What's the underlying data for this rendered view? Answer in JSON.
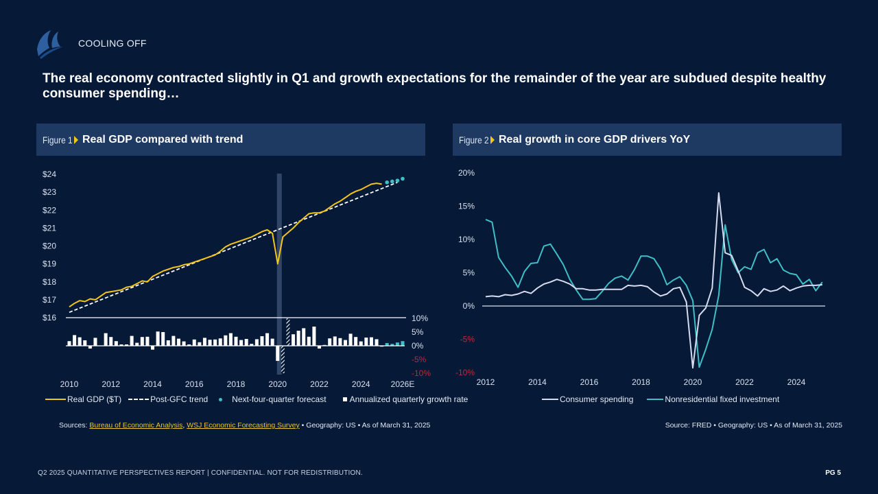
{
  "header": {
    "kicker": "COOLING OFF",
    "headline": "The real economy contracted slightly in Q1 and growth expectations for the remainder of the year are subdued despite healthy consumer spending…"
  },
  "figure1": {
    "number": "Figure 1",
    "title": "Real GDP compared with trend",
    "legend": {
      "gdp": "Real GDP ($T)",
      "trend": "Post-GFC trend",
      "forecast": "Next-four-quarter forecast",
      "growth": "Annualized quarterly growth rate"
    },
    "source": {
      "prefix": "Sources: ",
      "link1": "Bureau of Economic Analysis",
      "sep": ", ",
      "link2": "WSJ Economic Forecasting Survey",
      "suffix": " • Geography: US • As of March 31, 2025"
    }
  },
  "figure2": {
    "number": "Figure 2",
    "title": "Real growth in core GDP drivers YoY",
    "legend": {
      "consumer": "Consumer spending",
      "nonres": "Nonresidential fixed investment"
    },
    "source": "Source: FRED • Geography: US • As of March 31, 2025"
  },
  "footer": {
    "text": "Q2 2025 QUANTITATIVE PERSPECTIVES REPORT | CONFIDENTIAL. NOT FOR REDISTRIBUTION.",
    "page": "PG 5"
  },
  "colors": {
    "background": "#061a38",
    "panel_header": "#1e3a62",
    "gdp_line": "#f5c518",
    "forecast": "#3fbfc8",
    "consumer": "#d8dcef",
    "nonres": "#3fbfc8",
    "negative": "#c0263a",
    "recession_band": "#3a4f6e"
  },
  "chart_data": [
    {
      "type": "line",
      "title": "Real GDP compared with trend",
      "x_ticks": [
        "2010",
        "2012",
        "2014",
        "2016",
        "2018",
        "2020",
        "2022",
        "2024",
        "2026E"
      ],
      "x_range": [
        2010,
        2026
      ],
      "y_ticks": [
        "$16",
        "$17",
        "$18",
        "$19",
        "$20",
        "$21",
        "$22",
        "$23",
        "$24"
      ],
      "ylim": [
        16,
        24
      ],
      "ylabel": "Real GDP ($T)",
      "recession_band": [
        2020.0,
        2020.25
      ],
      "series": [
        {
          "name": "Real GDP ($T)",
          "x": [
            2010.0,
            2010.25,
            2010.5,
            2010.75,
            2011.0,
            2011.25,
            2011.5,
            2011.75,
            2012.0,
            2012.25,
            2012.5,
            2012.75,
            2013.0,
            2013.25,
            2013.5,
            2013.75,
            2014.0,
            2014.25,
            2014.5,
            2014.75,
            2015.0,
            2015.25,
            2015.5,
            2015.75,
            2016.0,
            2016.25,
            2016.5,
            2016.75,
            2017.0,
            2017.25,
            2017.5,
            2017.75,
            2018.0,
            2018.25,
            2018.5,
            2018.75,
            2019.0,
            2019.25,
            2019.5,
            2019.75,
            2020.0,
            2020.25,
            2020.5,
            2020.75,
            2021.0,
            2021.25,
            2021.5,
            2021.75,
            2022.0,
            2022.25,
            2022.5,
            2022.75,
            2023.0,
            2023.25,
            2023.5,
            2023.75,
            2024.0,
            2024.25,
            2024.5,
            2024.75,
            2025.0
          ],
          "values": [
            16.6,
            16.8,
            16.95,
            16.9,
            17.05,
            17.0,
            17.2,
            17.4,
            17.45,
            17.5,
            17.55,
            17.7,
            17.75,
            17.9,
            18.05,
            18.0,
            18.3,
            18.45,
            18.6,
            18.7,
            18.8,
            18.85,
            18.95,
            19.0,
            19.1,
            19.2,
            19.3,
            19.4,
            19.5,
            19.7,
            19.95,
            20.1,
            20.2,
            20.3,
            20.4,
            20.5,
            20.65,
            20.8,
            20.9,
            20.7,
            19.0,
            20.5,
            20.75,
            21.0,
            21.3,
            21.55,
            21.8,
            21.85,
            21.85,
            21.95,
            22.15,
            22.35,
            22.5,
            22.7,
            22.9,
            23.05,
            23.15,
            23.3,
            23.45,
            23.5,
            23.45
          ]
        },
        {
          "name": "Post-GFC trend",
          "x": [
            2010.0,
            2025.75
          ],
          "values": [
            16.3,
            23.55
          ]
        },
        {
          "name": "Next-four-quarter forecast",
          "x": [
            2025.25,
            2025.5,
            2025.75,
            2026.0
          ],
          "values": [
            23.55,
            23.6,
            23.65,
            23.75
          ]
        }
      ]
    },
    {
      "type": "bar",
      "title": "Annualized quarterly growth rate",
      "y_ticks": [
        "10%",
        "5%",
        "0%",
        "-5%",
        "-10%"
      ],
      "ylim": [
        -10,
        10
      ],
      "x": [
        2010.0,
        2010.25,
        2010.5,
        2010.75,
        2011.0,
        2011.25,
        2011.5,
        2011.75,
        2012.0,
        2012.25,
        2012.5,
        2012.75,
        2013.0,
        2013.25,
        2013.5,
        2013.75,
        2014.0,
        2014.25,
        2014.5,
        2014.75,
        2015.0,
        2015.25,
        2015.5,
        2015.75,
        2016.0,
        2016.25,
        2016.5,
        2016.75,
        2017.0,
        2017.25,
        2017.5,
        2017.75,
        2018.0,
        2018.25,
        2018.5,
        2018.75,
        2019.0,
        2019.25,
        2019.5,
        2019.75,
        2020.0,
        2020.25,
        2020.5,
        2020.75,
        2021.0,
        2021.25,
        2021.5,
        2021.75,
        2022.0,
        2022.25,
        2022.5,
        2022.75,
        2023.0,
        2023.25,
        2023.5,
        2023.75,
        2024.0,
        2024.25,
        2024.5,
        2024.75,
        2025.0,
        2025.25,
        2025.5,
        2025.75,
        2026.0
      ],
      "values": [
        1.7,
        3.9,
        3.1,
        2.0,
        -1.0,
        2.9,
        0,
        4.6,
        3.2,
        1.7,
        0.5,
        0.5,
        3.6,
        1.1,
        3.2,
        3.3,
        -1.4,
        5.2,
        5.0,
        2.0,
        3.6,
        2.6,
        1.6,
        0.5,
        2.3,
        1.3,
        2.9,
        2.2,
        2.3,
        2.7,
        3.8,
        4.6,
        3.3,
        2.1,
        2.5,
        0.7,
        2.4,
        3.5,
        4.6,
        2.6,
        -5.5,
        -10,
        10,
        4.2,
        5.5,
        6.4,
        3.3,
        7.0,
        -1.0,
        0.3,
        2.7,
        3.4,
        2.8,
        2.1,
        4.4,
        3.2,
        1.6,
        3.0,
        3.1,
        2.4,
        -0.3,
        1.0,
        0.7,
        1.2,
        1.7
      ],
      "hatched_indices": [
        41,
        42
      ],
      "forecast_indices": [
        61,
        62,
        63,
        64
      ]
    },
    {
      "type": "line",
      "title": "Real growth in core GDP drivers YoY",
      "x_ticks": [
        "2012",
        "2014",
        "2016",
        "2018",
        "2020",
        "2022",
        "2024"
      ],
      "x_range": [
        2012,
        2025
      ],
      "y_ticks": [
        "20%",
        "15%",
        "10%",
        "5%",
        "0%",
        "-5%",
        "-10%"
      ],
      "ylim": [
        -10,
        20
      ],
      "series": [
        {
          "name": "Consumer spending",
          "x": [
            2012.0,
            2012.25,
            2012.5,
            2012.75,
            2013.0,
            2013.25,
            2013.5,
            2013.75,
            2014.0,
            2014.25,
            2014.5,
            2014.75,
            2015.0,
            2015.25,
            2015.5,
            2015.75,
            2016.0,
            2016.25,
            2016.5,
            2016.75,
            2017.0,
            2017.25,
            2017.5,
            2017.75,
            2018.0,
            2018.25,
            2018.5,
            2018.75,
            2019.0,
            2019.25,
            2019.5,
            2019.75,
            2020.0,
            2020.25,
            2020.5,
            2020.75,
            2021.0,
            2021.25,
            2021.5,
            2021.75,
            2022.0,
            2022.25,
            2022.5,
            2022.75,
            2023.0,
            2023.25,
            2023.5,
            2023.75,
            2024.0,
            2024.25,
            2024.5,
            2024.75,
            2025.0
          ],
          "values": [
            1.4,
            1.5,
            1.4,
            1.7,
            1.6,
            1.8,
            2.2,
            1.9,
            2.7,
            3.3,
            3.6,
            4.0,
            3.7,
            3.3,
            2.6,
            2.6,
            2.4,
            2.4,
            2.5,
            2.5,
            2.5,
            2.5,
            3.1,
            3.0,
            3.1,
            2.9,
            2.1,
            1.5,
            1.8,
            2.6,
            2.8,
            0.6,
            -9.3,
            -1.4,
            -0.3,
            2.7,
            17.0,
            8.0,
            7.6,
            5.3,
            2.8,
            2.3,
            1.5,
            2.6,
            2.2,
            2.4,
            3.0,
            2.3,
            2.7,
            3.0,
            3.1,
            3.1,
            3.2
          ]
        },
        {
          "name": "Nonresidential fixed investment",
          "x": [
            2012.0,
            2012.25,
            2012.5,
            2012.75,
            2013.0,
            2013.25,
            2013.5,
            2013.75,
            2014.0,
            2014.25,
            2014.5,
            2014.75,
            2015.0,
            2015.25,
            2015.5,
            2015.75,
            2016.0,
            2016.25,
            2016.5,
            2016.75,
            2017.0,
            2017.25,
            2017.5,
            2017.75,
            2018.0,
            2018.25,
            2018.5,
            2018.75,
            2019.0,
            2019.25,
            2019.5,
            2019.75,
            2020.0,
            2020.25,
            2020.5,
            2020.75,
            2021.0,
            2021.25,
            2021.5,
            2021.75,
            2022.0,
            2022.25,
            2022.5,
            2022.75,
            2023.0,
            2023.25,
            2023.5,
            2023.75,
            2024.0,
            2024.25,
            2024.5,
            2024.75,
            2025.0
          ],
          "values": [
            13.0,
            12.6,
            7.3,
            5.8,
            4.5,
            2.8,
            5.2,
            6.4,
            6.5,
            9.0,
            9.3,
            7.8,
            6.2,
            4.0,
            2.4,
            1.0,
            1.0,
            1.1,
            2.2,
            3.4,
            4.2,
            4.5,
            3.9,
            5.5,
            7.5,
            7.5,
            7.1,
            5.6,
            3.2,
            3.9,
            4.4,
            3.1,
            0.8,
            -9.2,
            -6.5,
            -3.5,
            1.6,
            12.2,
            7.0,
            5.0,
            5.9,
            5.5,
            8.0,
            8.5,
            6.5,
            7.1,
            5.4,
            4.9,
            4.7,
            3.3,
            4.0,
            2.3,
            3.6
          ]
        }
      ]
    }
  ]
}
